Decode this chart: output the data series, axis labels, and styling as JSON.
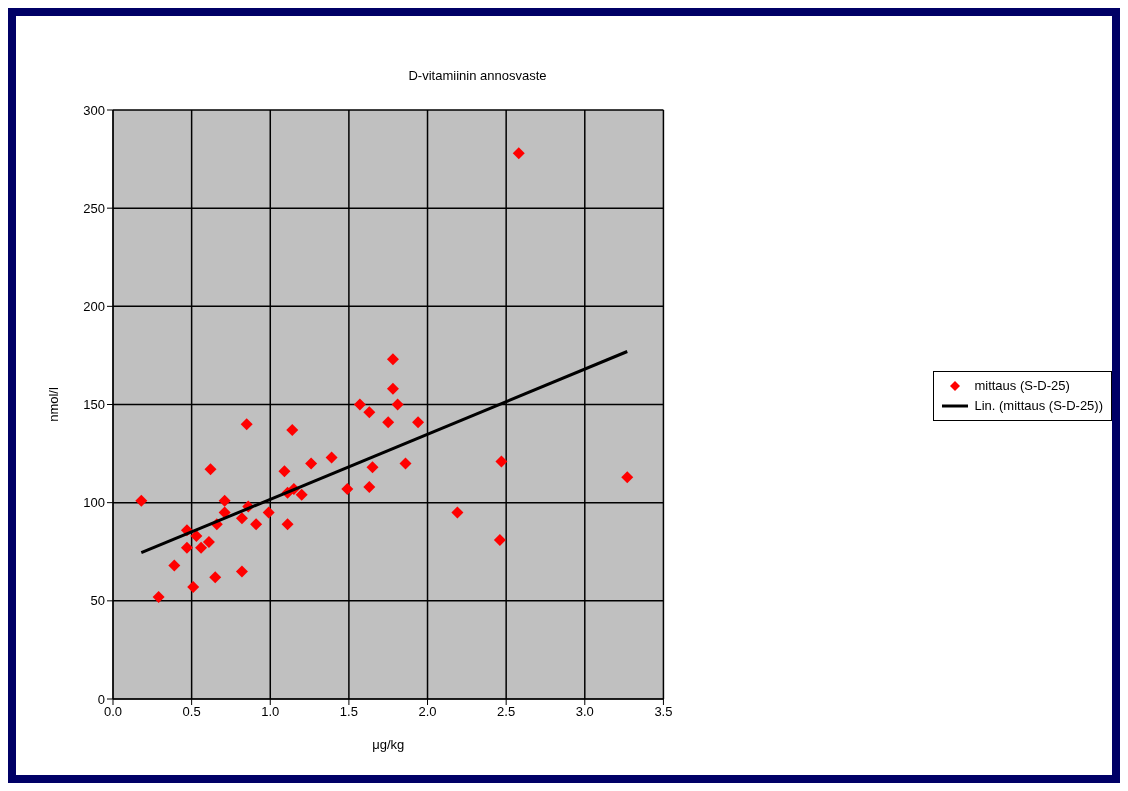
{
  "chart_data": {
    "type": "scatter",
    "title": "D-vitamiinin annosvaste",
    "xlabel": "μg/kg",
    "ylabel": "nmol/l",
    "xlim": [
      0,
      3.5
    ],
    "xticks": [
      {
        "value": 0,
        "label": "0.0"
      },
      {
        "value": 0.5,
        "label": "0.5"
      },
      {
        "value": 1,
        "label": "1.0"
      },
      {
        "value": 1.5,
        "label": "1.5"
      },
      {
        "value": 2,
        "label": "2.0"
      },
      {
        "value": 2.5,
        "label": "2.5"
      },
      {
        "value": 3,
        "label": "3.0"
      },
      {
        "value": 3.5,
        "label": "3.5"
      }
    ],
    "ylim": [
      0,
      300
    ],
    "yticks": [
      0,
      50,
      100,
      150,
      200,
      250,
      300
    ],
    "grid": true,
    "legend": "right",
    "series": [
      {
        "name": "mittaus (S-D-25)",
        "color": "#ff0000",
        "marker": "diamond",
        "x": [
          0.18,
          0.29,
          0.39,
          0.47,
          0.47,
          0.51,
          0.53,
          0.56,
          0.61,
          0.62,
          0.65,
          0.66,
          0.71,
          0.71,
          0.82,
          0.82,
          0.85,
          0.86,
          0.91,
          0.99,
          1.09,
          1.11,
          1.11,
          1.14,
          1.15,
          1.2,
          1.26,
          1.39,
          1.49,
          1.57,
          1.63,
          1.63,
          1.65,
          1.75,
          1.78,
          1.78,
          1.81,
          1.86,
          1.94,
          2.19,
          2.46,
          2.47,
          2.58,
          3.27
        ],
        "values": [
          101,
          52,
          68,
          77,
          86,
          57,
          83,
          77,
          80,
          117,
          62,
          89,
          101,
          95,
          92,
          65,
          140,
          98,
          89,
          95,
          116,
          89,
          105,
          137,
          107,
          104,
          120,
          123,
          107,
          150,
          146,
          108,
          118,
          141,
          173,
          158,
          150,
          120,
          141,
          95,
          81,
          121,
          278,
          113
        ]
      },
      {
        "name": "Lin. (mittaus (S-D-25))",
        "type": "line",
        "color": "#000000",
        "line_style": "solid",
        "x": [
          0.18,
          3.27
        ],
        "values": [
          74.5,
          177
        ]
      }
    ]
  }
}
